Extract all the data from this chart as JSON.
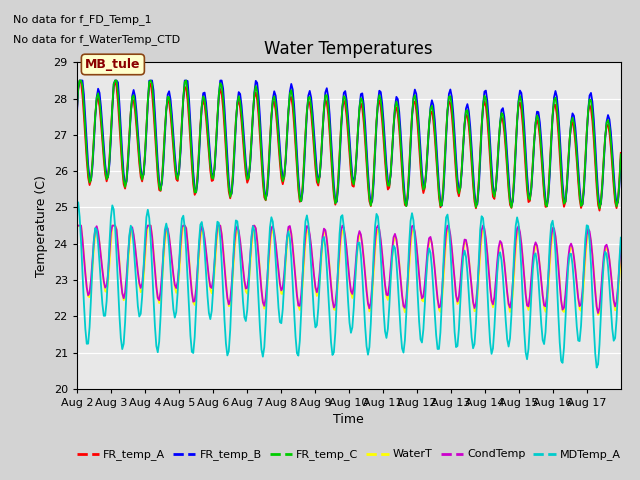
{
  "title": "Water Temperatures",
  "xlabel": "Time",
  "ylabel": "Temperature (C)",
  "ylim": [
    20.0,
    29.0
  ],
  "yticks": [
    20.0,
    21.0,
    22.0,
    23.0,
    24.0,
    25.0,
    26.0,
    27.0,
    28.0,
    29.0
  ],
  "note1": "No data for f_FD_Temp_1",
  "note2": "No data for f_WaterTemp_CTD",
  "mb_tule_label": "MB_tule",
  "legend_entries": [
    "FR_temp_A",
    "FR_temp_B",
    "FR_temp_C",
    "WaterT",
    "CondTemp",
    "MDTemp_A"
  ],
  "legend_colors": [
    "#ff0000",
    "#0000ff",
    "#00cc00",
    "#ffff00",
    "#cc00cc",
    "#00cccc"
  ],
  "bg_color": "#d3d3d3",
  "plot_bg_color": "#e8e8e8",
  "xtick_labels": [
    "Aug 2",
    "Aug 3",
    "Aug 4",
    "Aug 5",
    "Aug 6",
    "Aug 7",
    "Aug 8",
    "Aug 9",
    "Aug 10",
    "Aug 11",
    "Aug 12",
    "Aug 13",
    "Aug 14",
    "Aug 15",
    "Aug 16",
    "Aug 17"
  ],
  "num_days": 16,
  "start_day": 2
}
